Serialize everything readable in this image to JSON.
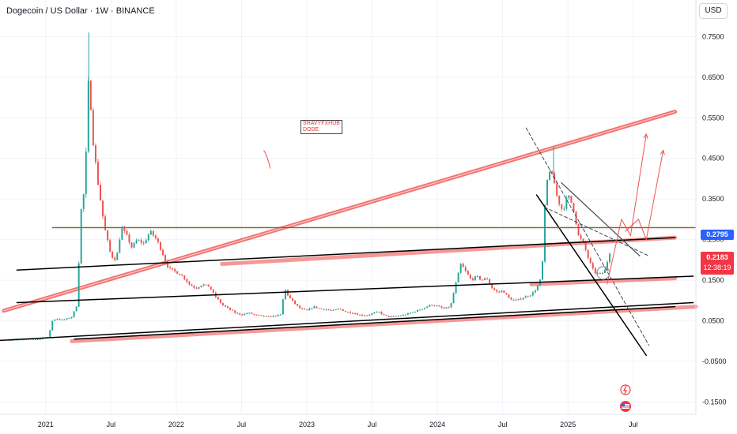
{
  "header": {
    "symbol_title": "Dogecoin / US Dollar · 1W · BINANCE",
    "currency_button": "USD"
  },
  "annotation_note": "SHAVYFXHUB\nDODE",
  "price_tags": {
    "level_price": "0.2795",
    "last_price": "0.2183",
    "countdown": "12:38:19"
  },
  "colors": {
    "up": "#26a69a",
    "down": "#ef5350",
    "trend_red": "#ef5350",
    "level_blue": "#2962ff",
    "line_black": "#000000"
  },
  "chart_data": {
    "type": "candlestick",
    "symbol": "DOGEUSD",
    "interval": "1W",
    "y_axis": {
      "ticks": [
        0.75,
        0.65,
        0.55,
        0.45,
        0.35,
        0.25,
        0.15,
        0.05,
        -0.05,
        -0.15
      ],
      "tick_labels": [
        "0.7500",
        "0.6500",
        "0.5500",
        "0.4500",
        "0.3500",
        "0.2500",
        "0.1500",
        "0.0500",
        "-0.0500",
        "-0.1500"
      ],
      "ylim": [
        -0.18,
        0.84
      ]
    },
    "x_axis": {
      "ticks": [
        "2021",
        "Jul",
        "2022",
        "Jul",
        "2023",
        "Jul",
        "2024",
        "Jul",
        "2025",
        "Jul"
      ],
      "tick_t": [
        2021.0,
        2021.5,
        2022.0,
        2022.5,
        2023.0,
        2023.5,
        2024.0,
        2024.5,
        2025.0,
        2025.5
      ],
      "xlim": [
        2020.65,
        2025.98
      ]
    },
    "horizontal_level": 0.2795,
    "last_price": 0.2183,
    "path": [
      [
        2020.72,
        0.003
      ],
      [
        2020.95,
        0.005
      ],
      [
        2021.02,
        0.01
      ],
      [
        2021.05,
        0.05
      ],
      [
        2021.08,
        0.056
      ],
      [
        2021.12,
        0.052
      ],
      [
        2021.16,
        0.055
      ],
      [
        2021.2,
        0.06
      ],
      [
        2021.24,
        0.09
      ],
      [
        2021.27,
        0.32
      ],
      [
        2021.3,
        0.38
      ],
      [
        2021.33,
        0.66
      ],
      [
        2021.36,
        0.5
      ],
      [
        2021.4,
        0.39
      ],
      [
        2021.45,
        0.28
      ],
      [
        2021.5,
        0.21
      ],
      [
        2021.54,
        0.2
      ],
      [
        2021.58,
        0.28
      ],
      [
        2021.62,
        0.26
      ],
      [
        2021.66,
        0.23
      ],
      [
        2021.7,
        0.25
      ],
      [
        2021.75,
        0.24
      ],
      [
        2021.8,
        0.27
      ],
      [
        2021.85,
        0.25
      ],
      [
        2021.89,
        0.22
      ],
      [
        2021.94,
        0.18
      ],
      [
        2022.0,
        0.17
      ],
      [
        2022.05,
        0.16
      ],
      [
        2022.1,
        0.14
      ],
      [
        2022.15,
        0.13
      ],
      [
        2022.2,
        0.14
      ],
      [
        2022.25,
        0.135
      ],
      [
        2022.3,
        0.11
      ],
      [
        2022.35,
        0.09
      ],
      [
        2022.4,
        0.08
      ],
      [
        2022.45,
        0.07
      ],
      [
        2022.5,
        0.065
      ],
      [
        2022.55,
        0.07
      ],
      [
        2022.6,
        0.065
      ],
      [
        2022.65,
        0.062
      ],
      [
        2022.7,
        0.06
      ],
      [
        2022.75,
        0.062
      ],
      [
        2022.8,
        0.065
      ],
      [
        2022.83,
        0.13
      ],
      [
        2022.86,
        0.11
      ],
      [
        2022.9,
        0.095
      ],
      [
        2022.95,
        0.08
      ],
      [
        2023.0,
        0.075
      ],
      [
        2023.05,
        0.085
      ],
      [
        2023.1,
        0.08
      ],
      [
        2023.15,
        0.078
      ],
      [
        2023.2,
        0.075
      ],
      [
        2023.25,
        0.08
      ],
      [
        2023.3,
        0.072
      ],
      [
        2023.35,
        0.07
      ],
      [
        2023.4,
        0.065
      ],
      [
        2023.45,
        0.063
      ],
      [
        2023.5,
        0.068
      ],
      [
        2023.55,
        0.072
      ],
      [
        2023.6,
        0.062
      ],
      [
        2023.65,
        0.06
      ],
      [
        2023.7,
        0.062
      ],
      [
        2023.75,
        0.065
      ],
      [
        2023.8,
        0.07
      ],
      [
        2023.85,
        0.076
      ],
      [
        2023.9,
        0.082
      ],
      [
        2023.95,
        0.09
      ],
      [
        2024.0,
        0.086
      ],
      [
        2024.05,
        0.08
      ],
      [
        2024.1,
        0.085
      ],
      [
        2024.14,
        0.14
      ],
      [
        2024.18,
        0.19
      ],
      [
        2024.22,
        0.17
      ],
      [
        2024.26,
        0.15
      ],
      [
        2024.3,
        0.16
      ],
      [
        2024.34,
        0.15
      ],
      [
        2024.38,
        0.155
      ],
      [
        2024.42,
        0.13
      ],
      [
        2024.46,
        0.12
      ],
      [
        2024.5,
        0.125
      ],
      [
        2024.55,
        0.105
      ],
      [
        2024.6,
        0.1
      ],
      [
        2024.64,
        0.105
      ],
      [
        2024.68,
        0.11
      ],
      [
        2024.72,
        0.115
      ],
      [
        2024.76,
        0.13
      ],
      [
        2024.8,
        0.16
      ],
      [
        2024.83,
        0.38
      ],
      [
        2024.86,
        0.42
      ],
      [
        2024.89,
        0.4
      ],
      [
        2024.92,
        0.35
      ],
      [
        2024.96,
        0.32
      ],
      [
        2025.0,
        0.36
      ],
      [
        2025.04,
        0.33
      ],
      [
        2025.08,
        0.26
      ],
      [
        2025.12,
        0.24
      ],
      [
        2025.16,
        0.2
      ],
      [
        2025.2,
        0.17
      ],
      [
        2025.24,
        0.165
      ],
      [
        2025.28,
        0.17
      ],
      [
        2025.32,
        0.2183
      ]
    ]
  }
}
